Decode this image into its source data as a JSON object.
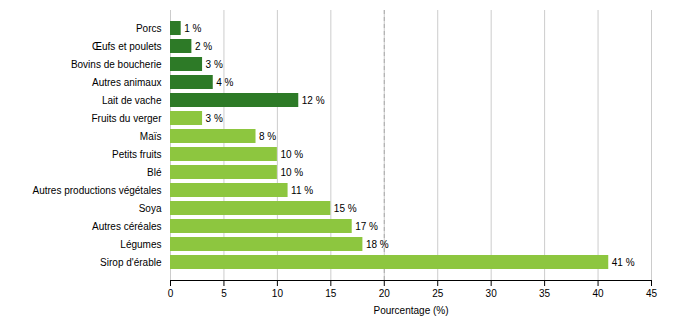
{
  "chart_data": {
    "type": "bar",
    "orientation": "horizontal",
    "categories": [
      "Sirop d'érable",
      "Légumes",
      "Autres céréales",
      "Soya",
      "Autres productions végétales",
      "Blé",
      "Petits fruits",
      "Maïs",
      "Fruits du verger",
      "Lait de vache",
      "Autres animaux",
      "Bovins de boucherie",
      "Œufs et poulets",
      "Porcs"
    ],
    "values": [
      41,
      18,
      17,
      15,
      11,
      10,
      10,
      8,
      3,
      12,
      4,
      3,
      2,
      1
    ],
    "value_labels": [
      "41 %",
      "18 %",
      "17 %",
      "15 %",
      "11 %",
      "10 %",
      "10 %",
      "8 %",
      "3 %",
      "12 %",
      "4 %",
      "3 %",
      "2 %",
      "1 %"
    ],
    "data_labels": true,
    "colors": [
      "#8dc63f",
      "#8dc63f",
      "#8dc63f",
      "#8dc63f",
      "#8dc63f",
      "#8dc63f",
      "#8dc63f",
      "#8dc63f",
      "#8dc63f",
      "#2d7a27",
      "#2d7a27",
      "#2d7a27",
      "#2d7a27",
      "#2d7a27"
    ],
    "xlabel": "Pourcentage (%)",
    "xlim": [
      0,
      45
    ],
    "xticks": [
      0,
      5,
      10,
      15,
      20,
      25,
      30,
      35,
      40,
      45
    ],
    "grid": true,
    "annotations": [
      {
        "type": "line",
        "x": 20,
        "line_style": "dashed",
        "color": "#aaaaaa"
      }
    ]
  }
}
